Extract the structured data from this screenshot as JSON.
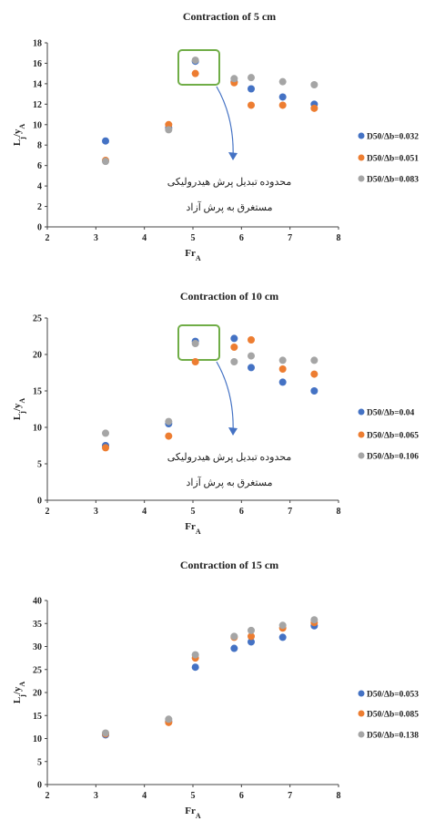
{
  "colors": {
    "blue": "#4472C4",
    "orange": "#ED7D31",
    "gray": "#A5A5A5",
    "annotation_box": "#70AD47",
    "annotation_arrow": "#4472C4"
  },
  "annotation": {
    "line1": "محدوده تبدیل پرش هیدرولیکی",
    "line2": "مستغرق به پرش آزاد"
  },
  "chart_data": [
    {
      "type": "scatter",
      "title": "Contraction of 5 cm",
      "xlabel": "Fr",
      "xlabel_sub": "A",
      "ylabel": "L",
      "ylabel_sub": "j",
      "ylabel_mid": "/y",
      "ylabel_sub2": "A",
      "xlim": [
        2,
        8
      ],
      "ylim": [
        0,
        18
      ],
      "xticks": [
        "2",
        "3",
        "4",
        "5",
        "6",
        "7",
        "8"
      ],
      "yticks": [
        "0",
        "2",
        "4",
        "6",
        "8",
        "10",
        "12",
        "14",
        "16",
        "18"
      ],
      "grid": false,
      "legend_position": "right",
      "series": [
        {
          "name": "D50/Δb=0.032",
          "color": "#4472C4",
          "x": [
            3.2,
            4.5,
            5.05,
            5.85,
            6.2,
            6.85,
            7.5
          ],
          "y": [
            8.4,
            9.7,
            16.2,
            14.2,
            13.5,
            12.7,
            12.0
          ]
        },
        {
          "name": "D50/Δb=0.051",
          "color": "#ED7D31",
          "x": [
            3.2,
            4.5,
            5.05,
            5.85,
            6.2,
            6.85,
            7.5
          ],
          "y": [
            6.5,
            10.0,
            15.0,
            14.1,
            11.9,
            11.9,
            11.6
          ]
        },
        {
          "name": "D50/Δb=0.083",
          "color": "#A5A5A5",
          "x": [
            3.2,
            4.5,
            5.05,
            5.85,
            6.2,
            6.85,
            7.5
          ],
          "y": [
            6.4,
            9.5,
            16.3,
            14.5,
            14.6,
            14.2,
            13.9
          ]
        }
      ]
    },
    {
      "type": "scatter",
      "title": "Contraction of 10 cm",
      "xlabel": "Fr",
      "xlabel_sub": "A",
      "ylabel": "L",
      "ylabel_sub": "j",
      "ylabel_mid": "/y",
      "ylabel_sub2": "A",
      "xlim": [
        2,
        8
      ],
      "ylim": [
        0,
        25
      ],
      "xticks": [
        "2",
        "3",
        "4",
        "5",
        "6",
        "7",
        "8"
      ],
      "yticks": [
        "0",
        "5",
        "10",
        "15",
        "20",
        "25"
      ],
      "grid": false,
      "legend_position": "right",
      "series": [
        {
          "name": "D50/Δb=0.04",
          "color": "#4472C4",
          "x": [
            3.2,
            4.5,
            5.05,
            5.85,
            6.2,
            6.85,
            7.5
          ],
          "y": [
            7.5,
            10.5,
            21.8,
            22.2,
            18.2,
            16.2,
            15.0
          ]
        },
        {
          "name": "D50/Δb=0.065",
          "color": "#ED7D31",
          "x": [
            3.2,
            4.5,
            5.05,
            5.85,
            6.2,
            6.85,
            7.5
          ],
          "y": [
            7.2,
            8.8,
            19.0,
            21.0,
            22.0,
            18.0,
            17.3
          ]
        },
        {
          "name": "D50/Δb=0.106",
          "color": "#A5A5A5",
          "x": [
            3.2,
            4.5,
            5.05,
            5.85,
            6.2,
            6.85,
            7.5
          ],
          "y": [
            9.2,
            10.8,
            21.5,
            19.0,
            19.8,
            19.2,
            19.2
          ]
        }
      ]
    },
    {
      "type": "scatter",
      "title": "Contraction of 15 cm",
      "xlabel": "Fr",
      "xlabel_sub": "A",
      "ylabel": "L",
      "ylabel_sub": "j",
      "ylabel_mid": "/y",
      "ylabel_sub2": "A",
      "xlim": [
        2,
        8
      ],
      "ylim": [
        0,
        40
      ],
      "xticks": [
        "2",
        "3",
        "4",
        "5",
        "6",
        "7",
        "8"
      ],
      "yticks": [
        "0",
        "5",
        "10",
        "15",
        "20",
        "25",
        "30",
        "35",
        "40"
      ],
      "grid": false,
      "legend_position": "right",
      "series": [
        {
          "name": "D50/Δb=0.053",
          "color": "#4472C4",
          "x": [
            3.2,
            4.5,
            5.05,
            5.85,
            6.2,
            6.85,
            7.5
          ],
          "y": [
            10.8,
            13.7,
            25.5,
            29.6,
            31.0,
            32.0,
            34.5
          ]
        },
        {
          "name": "D50/Δb=0.085",
          "color": "#ED7D31",
          "x": [
            3.2,
            4.5,
            5.05,
            5.85,
            6.2,
            6.85,
            7.5
          ],
          "y": [
            11.0,
            13.5,
            27.5,
            32.0,
            32.2,
            34.0,
            35.2
          ]
        },
        {
          "name": "D50/Δb=0.138",
          "color": "#A5A5A5",
          "x": [
            3.2,
            4.5,
            5.05,
            5.85,
            6.2,
            6.85,
            7.5
          ],
          "y": [
            11.2,
            14.2,
            28.2,
            32.2,
            33.5,
            34.6,
            35.8
          ]
        }
      ]
    }
  ]
}
